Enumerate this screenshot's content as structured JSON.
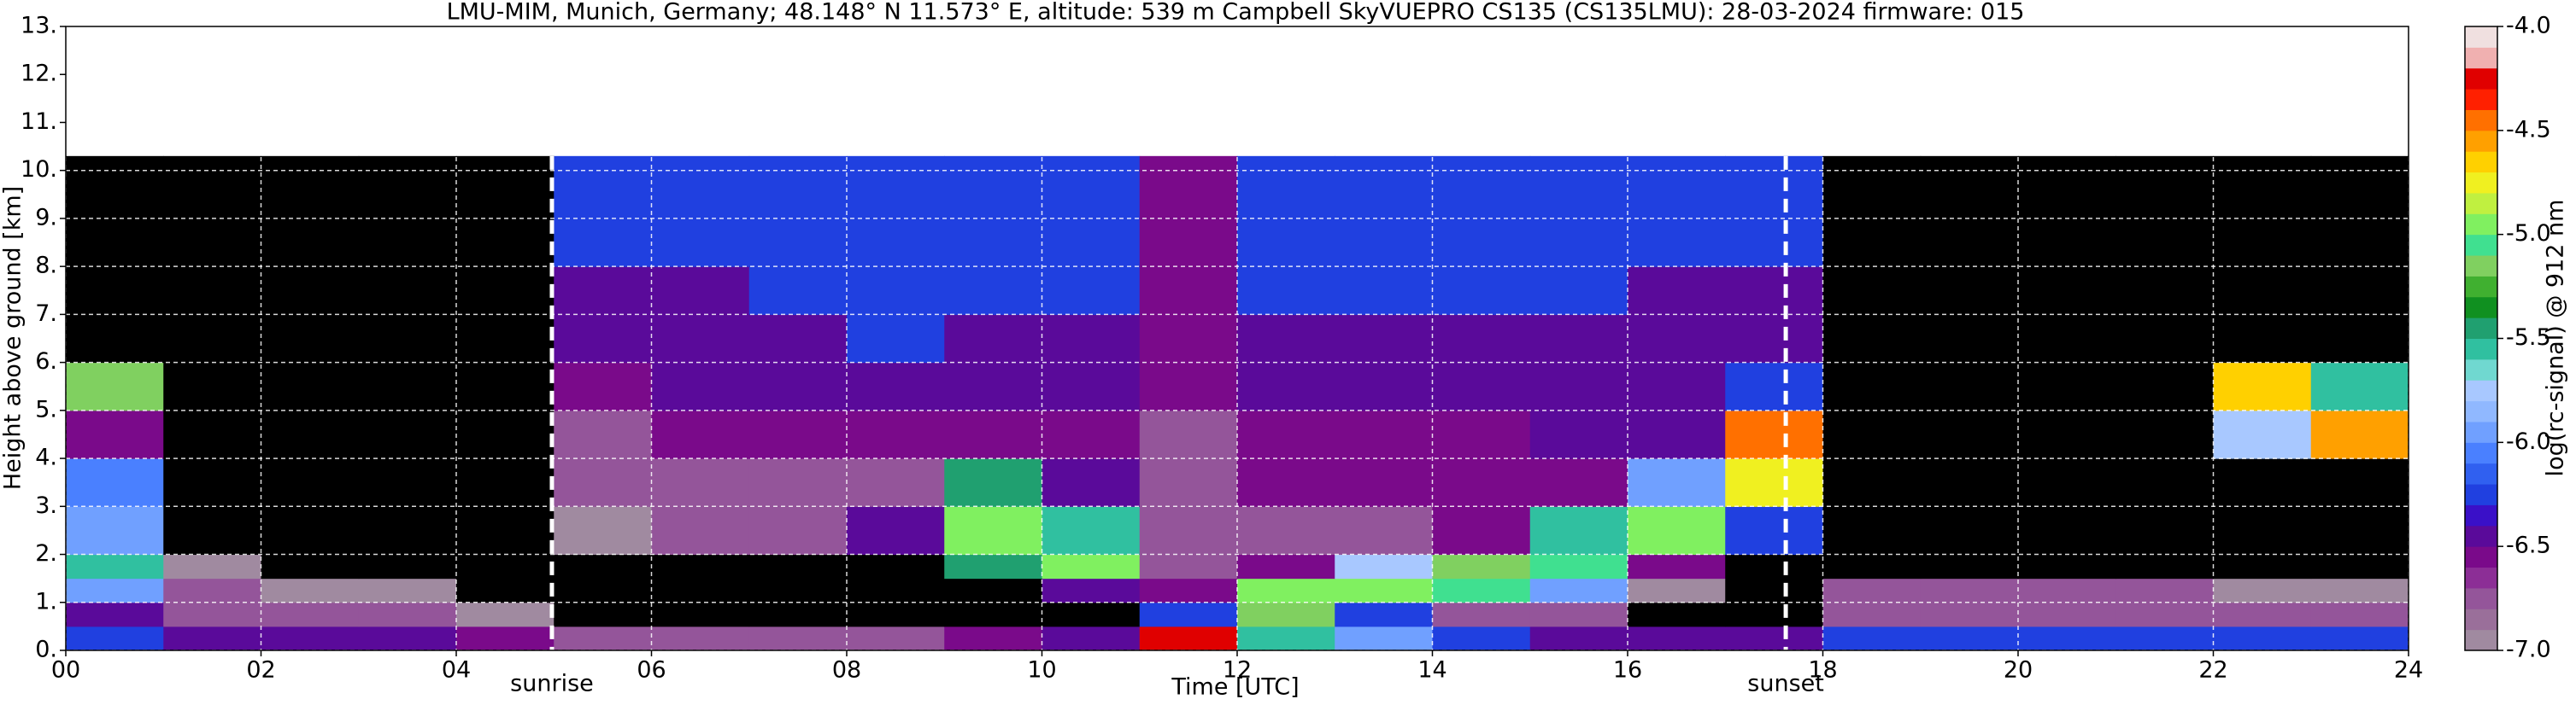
{
  "chart_data": {
    "type": "heatmap",
    "title": "LMU-MIM, Munich, Germany; 48.148° N 11.573° E, altitude: 539 m    Campbell SkyVUEPRO CS135 (CS135LMU): 28-03-2024    firmware: 015",
    "xlabel": "Time [UTC]",
    "ylabel": "Height above ground [km]",
    "colorbar_label": "log(rc-signal) @ 912 nm",
    "x_edges": [
      0,
      1,
      2,
      3,
      4,
      5,
      6,
      7,
      8,
      9,
      10,
      11,
      12,
      13,
      14,
      15,
      16,
      17,
      18,
      19,
      20,
      21,
      22,
      23,
      24
    ],
    "y_edges": [
      0,
      0.5,
      1,
      1.5,
      2,
      3,
      4,
      5,
      6,
      7,
      8,
      10.3
    ],
    "z": [
      [
        -6.3,
        -6.4,
        -6.4,
        -6.5,
        -6.6,
        -6.7,
        -6.7,
        -6.7,
        -6.7,
        -6.6,
        -6.4,
        -4.3,
        -5.6,
        -6.0,
        -6.3,
        -6.4,
        -6.5,
        -6.4,
        -6.2,
        -6.3,
        -6.3,
        -6.3,
        -6.3,
        -6.3
      ],
      [
        -6.5,
        -6.7,
        -6.8,
        -6.8,
        -6.9,
        -7.1,
        -7.1,
        -7.1,
        -7.1,
        -7.1,
        -7.1,
        -6.3,
        -5.2,
        -6.2,
        -6.8,
        -6.8,
        -7.1,
        -7.1,
        -6.7,
        -6.7,
        -6.7,
        -6.7,
        -6.7,
        -6.7
      ],
      [
        -6.0,
        -6.8,
        -6.9,
        -6.9,
        -7.1,
        -7.1,
        -7.1,
        -7.1,
        -7.1,
        -7.1,
        -6.5,
        -6.6,
        -5.0,
        -4.9,
        -5.1,
        -6.0,
        -6.9,
        -7.1,
        -6.8,
        -6.8,
        -6.8,
        -6.8,
        -6.9,
        -6.9
      ],
      [
        -5.6,
        -6.9,
        -7.1,
        -7.1,
        -7.1,
        -7.1,
        -7.1,
        -7.1,
        -7.1,
        -5.5,
        -5.0,
        -6.8,
        -6.6,
        -5.8,
        -5.2,
        -5.1,
        -6.6,
        -7.1,
        -7.1,
        -7.1,
        -7.1,
        -7.1,
        -7.1,
        -7.1
      ],
      [
        -5.9,
        -7.1,
        -7.1,
        -7.1,
        -7.1,
        -6.9,
        -6.8,
        -6.8,
        -6.5,
        -5.0,
        -5.6,
        -6.8,
        -6.7,
        -6.7,
        -6.6,
        -5.6,
        -5.0,
        -6.2,
        -7.1,
        -7.1,
        -7.1,
        -7.1,
        -7.1,
        -7.1
      ],
      [
        -6.1,
        -7.1,
        -7.1,
        -7.1,
        -7.1,
        -6.8,
        -6.7,
        -6.7,
        -6.7,
        -5.4,
        -6.5,
        -6.7,
        -6.6,
        -6.6,
        -6.6,
        -6.6,
        -6.0,
        -4.8,
        -7.1,
        -7.1,
        -7.1,
        -7.1,
        -7.1,
        -7.1
      ],
      [
        -6.6,
        -7.1,
        -7.1,
        -7.1,
        -7.1,
        -6.7,
        -6.6,
        -6.6,
        -6.6,
        -6.6,
        -6.6,
        -6.7,
        -6.6,
        -6.6,
        -6.6,
        -6.5,
        -6.4,
        -4.5,
        -7.1,
        -7.1,
        -7.1,
        -7.1,
        -5.8,
        -4.6
      ],
      [
        -5.2,
        -7.1,
        -7.1,
        -7.1,
        -7.1,
        -6.6,
        -6.5,
        -6.5,
        -6.4,
        -6.5,
        -6.5,
        -6.6,
        -6.5,
        -6.5,
        -6.5,
        -6.5,
        -6.4,
        -6.3,
        -7.1,
        -7.1,
        -7.1,
        -7.1,
        -4.7,
        -5.6
      ],
      [
        -7.1,
        -7.1,
        -7.1,
        -7.1,
        -7.1,
        -6.5,
        -6.4,
        -6.4,
        -6.3,
        -6.4,
        -6.4,
        -6.6,
        -6.4,
        -6.4,
        -6.4,
        -6.4,
        -6.4,
        -6.4,
        -7.1,
        -7.1,
        -7.1,
        -7.1,
        -7.1,
        -7.1
      ],
      [
        -7.1,
        -7.1,
        -7.1,
        -7.1,
        -7.1,
        -6.4,
        -6.4,
        -6.3,
        -6.3,
        -6.3,
        -6.3,
        -6.6,
        -6.3,
        -6.3,
        -6.3,
        -6.3,
        -6.4,
        -6.4,
        -7.1,
        -7.1,
        -7.1,
        -7.1,
        -7.1,
        -7.1
      ],
      [
        -7.1,
        -7.1,
        -7.1,
        -7.1,
        -7.1,
        -6.3,
        -6.3,
        -6.2,
        -6.2,
        -6.2,
        -6.3,
        -6.6,
        -6.2,
        -6.2,
        -6.3,
        -6.3,
        -6.3,
        -6.3,
        -7.1,
        -7.1,
        -7.1,
        -7.1,
        -7.1,
        -7.1
      ]
    ],
    "xlim": [
      0,
      24
    ],
    "ylim": [
      0,
      13
    ],
    "xticks": [
      {
        "value": 0,
        "label": "00"
      },
      {
        "value": 2,
        "label": "02"
      },
      {
        "value": 4,
        "label": "04"
      },
      {
        "value": 6,
        "label": "06"
      },
      {
        "value": 8,
        "label": "08"
      },
      10,
      12,
      14,
      16,
      18,
      20,
      22,
      24
    ],
    "yticks": [
      {
        "value": 0,
        "label": "0."
      },
      {
        "value": 1,
        "label": "1."
      },
      {
        "value": 2,
        "label": "2."
      },
      {
        "value": 3,
        "label": "3."
      },
      {
        "value": 4,
        "label": "4."
      },
      {
        "value": 5,
        "label": "5."
      },
      {
        "value": 6,
        "label": "6."
      },
      {
        "value": 7,
        "label": "7."
      },
      {
        "value": 8,
        "label": "8."
      },
      {
        "value": 9,
        "label": "9."
      },
      {
        "value": 10,
        "label": "10."
      },
      {
        "value": 11,
        "label": "11."
      },
      {
        "value": 12,
        "label": "12."
      },
      {
        "value": 13,
        "label": "13."
      }
    ],
    "zlim": [
      -7,
      -4
    ],
    "zticks": [
      {
        "value": -4,
        "label": "-4.0"
      },
      -4.5,
      {
        "value": -5,
        "label": "-5.0"
      },
      -5.5,
      {
        "value": -6,
        "label": "-6.0"
      },
      -6.5,
      {
        "value": -7,
        "label": "-7.0"
      }
    ],
    "colormap": [
      "#a08aa0",
      "#9a6f9a",
      "#94559a",
      "#8c2e96",
      "#7a0a8a",
      "#5a0a9a",
      "#3a10c8",
      "#2040e0",
      "#3060f0",
      "#4a80ff",
      "#70a0ff",
      "#90b8ff",
      "#a8c8ff",
      "#70d8d0",
      "#30c0a0",
      "#20a070",
      "#109020",
      "#40b030",
      "#80d060",
      "#40e090",
      "#80f060",
      "#c0f040",
      "#f0f020",
      "#ffd000",
      "#ffa000",
      "#ff7000",
      "#ff2000",
      "#e00000",
      "#f0b0b0",
      "#f0e0e0"
    ],
    "under_color": "#000000",
    "grid": true,
    "annotations": [
      {
        "text": "sunrise",
        "x": 4.98
      },
      {
        "text": "sunset",
        "x": 17.62
      }
    ]
  }
}
